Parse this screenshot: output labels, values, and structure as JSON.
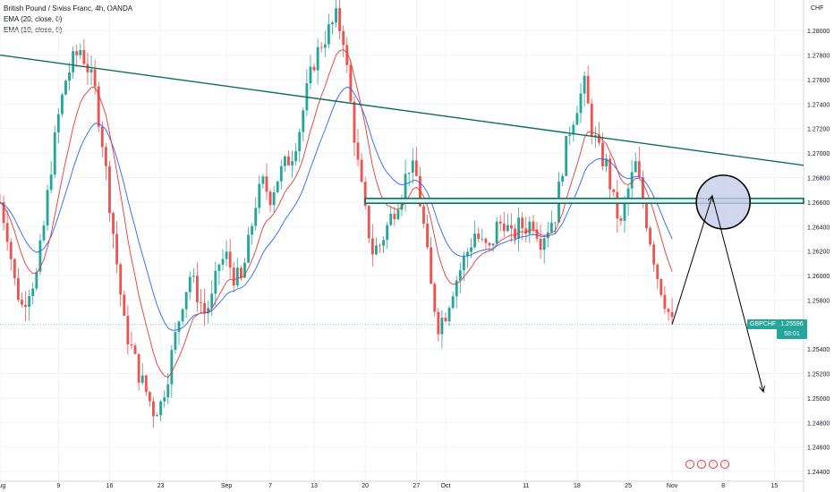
{
  "legend": {
    "title": "British Pound / Swiss Franc, 4h, OANDA",
    "ema20": "EMA (20, close, 0)",
    "ema10": "EMA (10, close, 0)"
  },
  "currency": "CHF",
  "ticker": "GBPCHF",
  "last_price": "1.25596",
  "countdown": "58:01",
  "colors": {
    "up": "#26a69a",
    "down": "#ef5350",
    "ema20": "#2962ff",
    "ema10": "#e53935",
    "trendline": "#0b6e5e",
    "zone": "#0b6e5e",
    "circle_fill": "#c5cae9",
    "grid": "#f0f3fa",
    "axis_text": "#131722"
  },
  "icons": [
    "alert-icon",
    "alert-icon",
    "alert-icon",
    "alert-icon"
  ],
  "chart_data": {
    "type": "candlestick",
    "title": "British Pound / Swiss Franc, 4h, OANDA",
    "series_names": [
      "EMA (20, close, 0)",
      "EMA (10, close, 0)"
    ],
    "y_ticks": [
      "1.28000",
      "1.27800",
      "1.27600",
      "1.27400",
      "1.27200",
      "1.27000",
      "1.26800",
      "1.26600",
      "1.26400",
      "1.26200",
      "1.26000",
      "1.25800",
      "1.25400",
      "1.25200",
      "1.25000",
      "1.24800",
      "1.24600",
      "1.24400"
    ],
    "y_tick_values": [
      1.28,
      1.278,
      1.276,
      1.274,
      1.272,
      1.27,
      1.268,
      1.266,
      1.264,
      1.262,
      1.26,
      1.258,
      1.254,
      1.252,
      1.25,
      1.248,
      1.246,
      1.244
    ],
    "x_ticks": [
      "Aug",
      "9",
      "16",
      "23",
      "Sep",
      "7",
      "13",
      "20",
      "27",
      "Oct",
      "11",
      "18",
      "25",
      "Nov",
      "8",
      "15"
    ],
    "x_tick_days": [
      0,
      8,
      15,
      22,
      31,
      37,
      43,
      50,
      57,
      61,
      72,
      79,
      86,
      92,
      99,
      106
    ],
    "ylim": [
      1.2432,
      1.2825
    ],
    "xlim_days": [
      0,
      110
    ],
    "price_path": [
      [
        0,
        1.266
      ],
      [
        1,
        1.2635
      ],
      [
        2,
        1.2595
      ],
      [
        3,
        1.2575
      ],
      [
        4,
        1.259
      ],
      [
        5,
        1.26
      ],
      [
        6,
        1.264
      ],
      [
        7,
        1.269
      ],
      [
        8,
        1.273
      ],
      [
        9,
        1.276
      ],
      [
        10,
        1.2775
      ],
      [
        11,
        1.2785
      ],
      [
        12,
        1.277
      ],
      [
        13,
        1.275
      ],
      [
        14,
        1.271
      ],
      [
        15,
        1.266
      ],
      [
        16,
        1.261
      ],
      [
        17,
        1.256
      ],
      [
        18,
        1.254
      ],
      [
        19,
        1.252
      ],
      [
        20,
        1.2505
      ],
      [
        21,
        1.249
      ],
      [
        22,
        1.2495
      ],
      [
        23,
        1.252
      ],
      [
        24,
        1.255
      ],
      [
        25,
        1.258
      ],
      [
        26,
        1.26
      ],
      [
        27,
        1.2585
      ],
      [
        28,
        1.257
      ],
      [
        29,
        1.258
      ],
      [
        30,
        1.261
      ],
      [
        31,
        1.2615
      ],
      [
        32,
        1.26
      ],
      [
        33,
        1.2595
      ],
      [
        34,
        1.2625
      ],
      [
        35,
        1.266
      ],
      [
        36,
        1.2675
      ],
      [
        37,
        1.2665
      ],
      [
        38,
        1.268
      ],
      [
        39,
        1.269
      ],
      [
        40,
        1.27
      ],
      [
        41,
        1.272
      ],
      [
        42,
        1.275
      ],
      [
        43,
        1.2775
      ],
      [
        44,
        1.279
      ],
      [
        45,
        1.28
      ],
      [
        46,
        1.281
      ],
      [
        47,
        1.2795
      ],
      [
        48,
        1.274
      ],
      [
        49,
        1.269
      ],
      [
        50,
        1.265
      ],
      [
        51,
        1.262
      ],
      [
        52,
        1.2625
      ],
      [
        53,
        1.264
      ],
      [
        54,
        1.2655
      ],
      [
        55,
        1.267
      ],
      [
        56,
        1.269
      ],
      [
        57,
        1.268
      ],
      [
        58,
        1.264
      ],
      [
        59,
        1.259
      ],
      [
        60,
        1.256
      ],
      [
        61,
        1.257
      ],
      [
        62,
        1.259
      ],
      [
        63,
        1.2605
      ],
      [
        64,
        1.262
      ],
      [
        65,
        1.2635
      ],
      [
        66,
        1.2625
      ],
      [
        67,
        1.262
      ],
      [
        68,
        1.264
      ],
      [
        69,
        1.2645
      ],
      [
        70,
        1.263
      ],
      [
        71,
        1.264
      ],
      [
        72,
        1.264
      ],
      [
        73,
        1.2645
      ],
      [
        74,
        1.263
      ],
      [
        75,
        1.264
      ],
      [
        76,
        1.265
      ],
      [
        77,
        1.269
      ],
      [
        78,
        1.272
      ],
      [
        79,
        1.274
      ],
      [
        80,
        1.2755
      ],
      [
        81,
        1.272
      ],
      [
        82,
        1.27
      ],
      [
        83,
        1.269
      ],
      [
        84,
        1.266
      ],
      [
        85,
        1.264
      ],
      [
        86,
        1.267
      ],
      [
        87,
        1.269
      ],
      [
        88,
        1.266
      ],
      [
        89,
        1.263
      ],
      [
        90,
        1.26
      ],
      [
        91,
        1.258
      ],
      [
        92,
        1.256
      ]
    ],
    "horizontal_zone": [
      1.2659,
      1.2663
    ],
    "trendline": [
      [
        0,
        1.278
      ],
      [
        110,
        1.269
      ]
    ],
    "target_circle": {
      "day": 99,
      "price": 1.266
    },
    "projection": [
      [
        92,
        1.256
      ],
      [
        97.5,
        1.2665
      ],
      [
        104.5,
        1.2505
      ]
    ]
  }
}
